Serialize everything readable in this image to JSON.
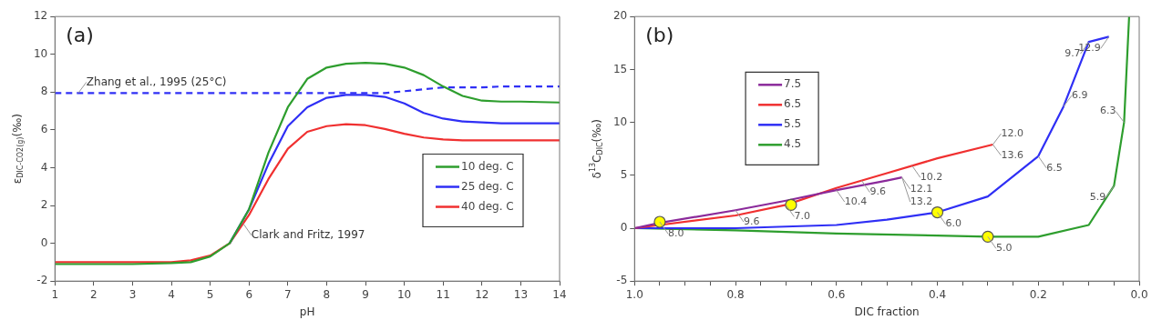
{
  "chart_data": [
    {
      "type": "line",
      "xlabel": "pH",
      "ylabel": "ε$_{DIC-CO2(g)}$(‰)",
      "xlim": [
        1,
        14
      ],
      "ylim": [
        -2,
        12
      ],
      "xticks": [
        1,
        2,
        3,
        4,
        5,
        6,
        7,
        8,
        9,
        10,
        11,
        12,
        13,
        14
      ],
      "yticks": [
        -2,
        0,
        2,
        4,
        6,
        8,
        10,
        12
      ],
      "legend": "right",
      "marker": "none",
      "line_style": "solid",
      "x": [
        1,
        2,
        3,
        4,
        4.5,
        5,
        5.5,
        6,
        6.5,
        7,
        7.5,
        8,
        8.5,
        9,
        9.5,
        10,
        10.5,
        11,
        11.5,
        12,
        12.5,
        13,
        14
      ],
      "series": [
        {
          "name": "10 deg. C",
          "color": "#2e9e2e",
          "values": [
            -1.1,
            -1.1,
            -1.1,
            -1.05,
            -1.0,
            -0.7,
            0,
            1.8,
            4.8,
            7.2,
            8.7,
            9.3,
            9.5,
            9.55,
            9.5,
            9.3,
            8.9,
            8.3,
            7.8,
            7.55,
            7.5,
            7.5,
            7.45
          ]
        },
        {
          "name": "25 deg. C",
          "color": "#2f2ff5",
          "values": [
            null,
            null,
            null,
            null,
            null,
            null,
            0,
            1.8,
            4.2,
            6.2,
            7.2,
            7.7,
            7.85,
            7.85,
            7.75,
            7.4,
            6.9,
            6.6,
            6.45,
            6.4,
            6.35,
            6.35,
            6.35
          ]
        },
        {
          "name": "40 deg. C",
          "color": "#f03030",
          "values": [
            -1.0,
            -1.0,
            -1.0,
            -1.0,
            -0.9,
            -0.65,
            0,
            1.5,
            3.4,
            5.0,
            5.9,
            6.2,
            6.3,
            6.25,
            6.05,
            5.8,
            5.6,
            5.5,
            5.45,
            5.45,
            5.45,
            5.45,
            5.45
          ]
        },
        {
          "color": "#2f2ff5",
          "line_style": "dashed",
          "values": [
            7.95,
            7.95,
            7.95,
            7.95,
            7.95,
            7.95,
            7.95,
            7.95,
            7.95,
            7.95,
            7.95,
            7.95,
            7.95,
            7.95,
            7.95,
            8.05,
            8.15,
            8.25,
            8.25,
            8.25,
            8.3,
            8.3,
            8.3
          ]
        }
      ],
      "annotations": [
        "(a)",
        {
          "text": "Zhang et al., 1995 (25°C)",
          "x": 1.6,
          "y": 7.95
        },
        {
          "text": "Clark and Fritz, 1997",
          "x": 5.85,
          "y": 1.05
        }
      ]
    },
    {
      "type": "line",
      "xlabel": "DIC fraction",
      "ylabel": "δ$^{13}$C$_{DIC}$(‰)",
      "xlim": [
        1,
        0
      ],
      "ylim": [
        -5,
        20
      ],
      "xticks": [
        {
          "value": 1,
          "label": "1.0"
        },
        {
          "value": 0.95,
          "label": null
        },
        {
          "value": 0.9,
          "label": null
        },
        {
          "value": 0.85,
          "label": null
        },
        {
          "value": 0.8,
          "label": "0.8"
        },
        {
          "value": 0.75,
          "label": null
        },
        {
          "value": 0.7,
          "label": null
        },
        {
          "value": 0.65,
          "label": null
        },
        {
          "value": 0.6,
          "label": "0.6"
        },
        {
          "value": 0.55,
          "label": null
        },
        {
          "value": 0.5,
          "label": null
        },
        {
          "value": 0.45,
          "label": null
        },
        {
          "value": 0.4,
          "label": "0.4"
        },
        {
          "value": 0.35,
          "label": null
        },
        {
          "value": 0.3,
          "label": null
        },
        {
          "value": 0.25,
          "label": null
        },
        {
          "value": 0.2,
          "label": "0.2"
        },
        {
          "value": 0.15,
          "label": null
        },
        {
          "value": 0.1,
          "label": null
        },
        {
          "value": 0.05,
          "label": null
        },
        {
          "value": 0,
          "label": "0.0"
        }
      ],
      "yticks": [
        -5,
        0,
        5,
        10,
        15,
        20
      ],
      "legend": "top left",
      "marker": "none",
      "line_style": "solid",
      "series": [
        {
          "name": "7.5",
          "color": "#8b2a9b",
          "x": [
            1,
            0.95,
            0.8,
            0.7,
            0.6,
            0.5,
            0.47
          ],
          "values": [
            0,
            0.5,
            1.7,
            2.6,
            3.6,
            4.5,
            4.8
          ]
        },
        {
          "name": "6.5",
          "color": "#f03030",
          "x": [
            1,
            0.95,
            0.8,
            0.7,
            0.6,
            0.5,
            0.4,
            0.29
          ],
          "values": [
            0,
            0.3,
            1.2,
            2.2,
            3.8,
            5.2,
            6.6,
            7.9
          ]
        },
        {
          "name": "5.5",
          "color": "#2f2ff5",
          "x": [
            1,
            0.8,
            0.6,
            0.5,
            0.4,
            0.3,
            0.2,
            0.15,
            0.1,
            0.06
          ],
          "values": [
            0,
            0,
            0.3,
            0.8,
            1.5,
            3.0,
            6.8,
            11.5,
            17.6,
            18.1
          ]
        },
        {
          "name": "4.5",
          "color": "#2e9e2e",
          "x": [
            1,
            0.8,
            0.6,
            0.4,
            0.3,
            0.2,
            0.1,
            0.05,
            0.03,
            0.02
          ],
          "values": [
            0,
            -0.2,
            -0.5,
            -0.7,
            -0.8,
            -0.8,
            0.3,
            4.0,
            10.0,
            20
          ]
        },
        {
          "type": "scatter",
          "color": "#ffff00",
          "marker": "circle",
          "x": [
            0.95,
            0.69,
            0.4,
            0.3
          ],
          "values": [
            0.6,
            2.2,
            1.5,
            -0.8
          ]
        }
      ],
      "annotations": [
        "(b)",
        {
          "text": "8.0",
          "x": 0.95,
          "y": 0.6
        },
        {
          "text": "9.6",
          "x": 0.8,
          "y": 1.7
        },
        {
          "text": "10.4",
          "x": 0.6,
          "y": 3.6
        },
        {
          "text": "12.1",
          "x": 0.47,
          "y": 4.8
        },
        {
          "text": "13.2",
          "x": 0.47,
          "y": 4.8
        },
        {
          "text": "7.0",
          "x": 0.7,
          "y": 2.2
        },
        {
          "text": "9.6",
          "x": 0.55,
          "y": 4.5
        },
        {
          "text": "10.2",
          "x": 0.45,
          "y": 5.9
        },
        {
          "text": "12.0",
          "x": 0.29,
          "y": 7.9
        },
        {
          "text": "13.6",
          "x": 0.29,
          "y": 7.9
        },
        {
          "text": "6.0",
          "x": 0.4,
          "y": 1.5
        },
        {
          "text": "6.5",
          "x": 0.2,
          "y": 6.8
        },
        {
          "text": "6.9",
          "x": 0.15,
          "y": 11.5
        },
        {
          "text": "9.7",
          "x": 0.1,
          "y": 17.6
        },
        {
          "text": "12.9",
          "x": 0.06,
          "y": 18.1
        },
        {
          "text": "5.0",
          "x": 0.3,
          "y": -0.8
        },
        {
          "text": "5.9",
          "x": 0.05,
          "y": 4.0
        },
        {
          "text": "6.3",
          "x": 0.03,
          "y": 10.0
        }
      ]
    }
  ]
}
